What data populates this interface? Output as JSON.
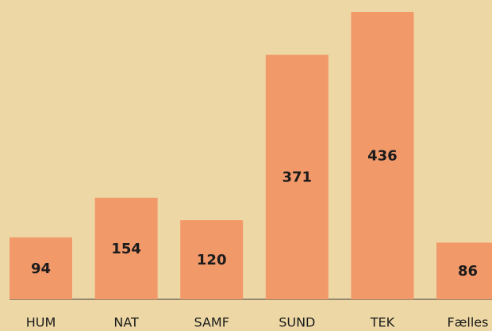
{
  "chart_data": {
    "type": "bar",
    "categories": [
      "HUM",
      "NAT",
      "SAMF",
      "SUND",
      "TEK",
      "Fælles"
    ],
    "values": [
      94,
      154,
      120,
      371,
      436,
      86
    ],
    "color": "#f2996a",
    "ylim": [
      0,
      436
    ]
  }
}
